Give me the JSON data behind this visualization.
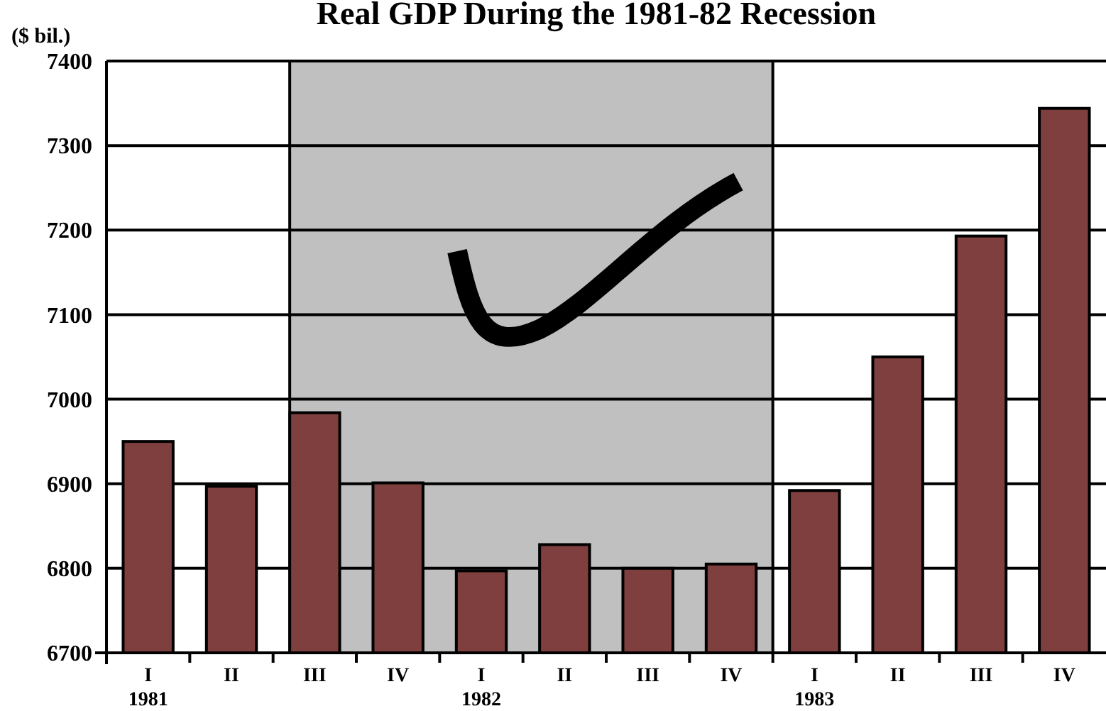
{
  "chart_data": {
    "type": "bar",
    "title": "Real GDP During the 1981-82 Recession",
    "ylabel": "($ bil.)",
    "categories": [
      "I\n1981",
      "II",
      "III",
      "IV",
      "I\n1982",
      "II",
      "III",
      "IV",
      "I\n1983",
      "II",
      "III",
      "IV"
    ],
    "values": [
      6950,
      6897,
      6984,
      6901,
      6797,
      6828,
      6800,
      6805,
      6892,
      7050,
      7193,
      7344
    ],
    "color": "#7f3f3f",
    "ylim": [
      6700,
      7400
    ],
    "yticks": [
      6700,
      6800,
      6900,
      7000,
      7100,
      7200,
      7300,
      7400
    ],
    "grid": "y",
    "bands": [
      {
        "axis": "x",
        "from": "III",
        "to": "I\n1983",
        "color": "#c0c0c0"
      }
    ]
  }
}
